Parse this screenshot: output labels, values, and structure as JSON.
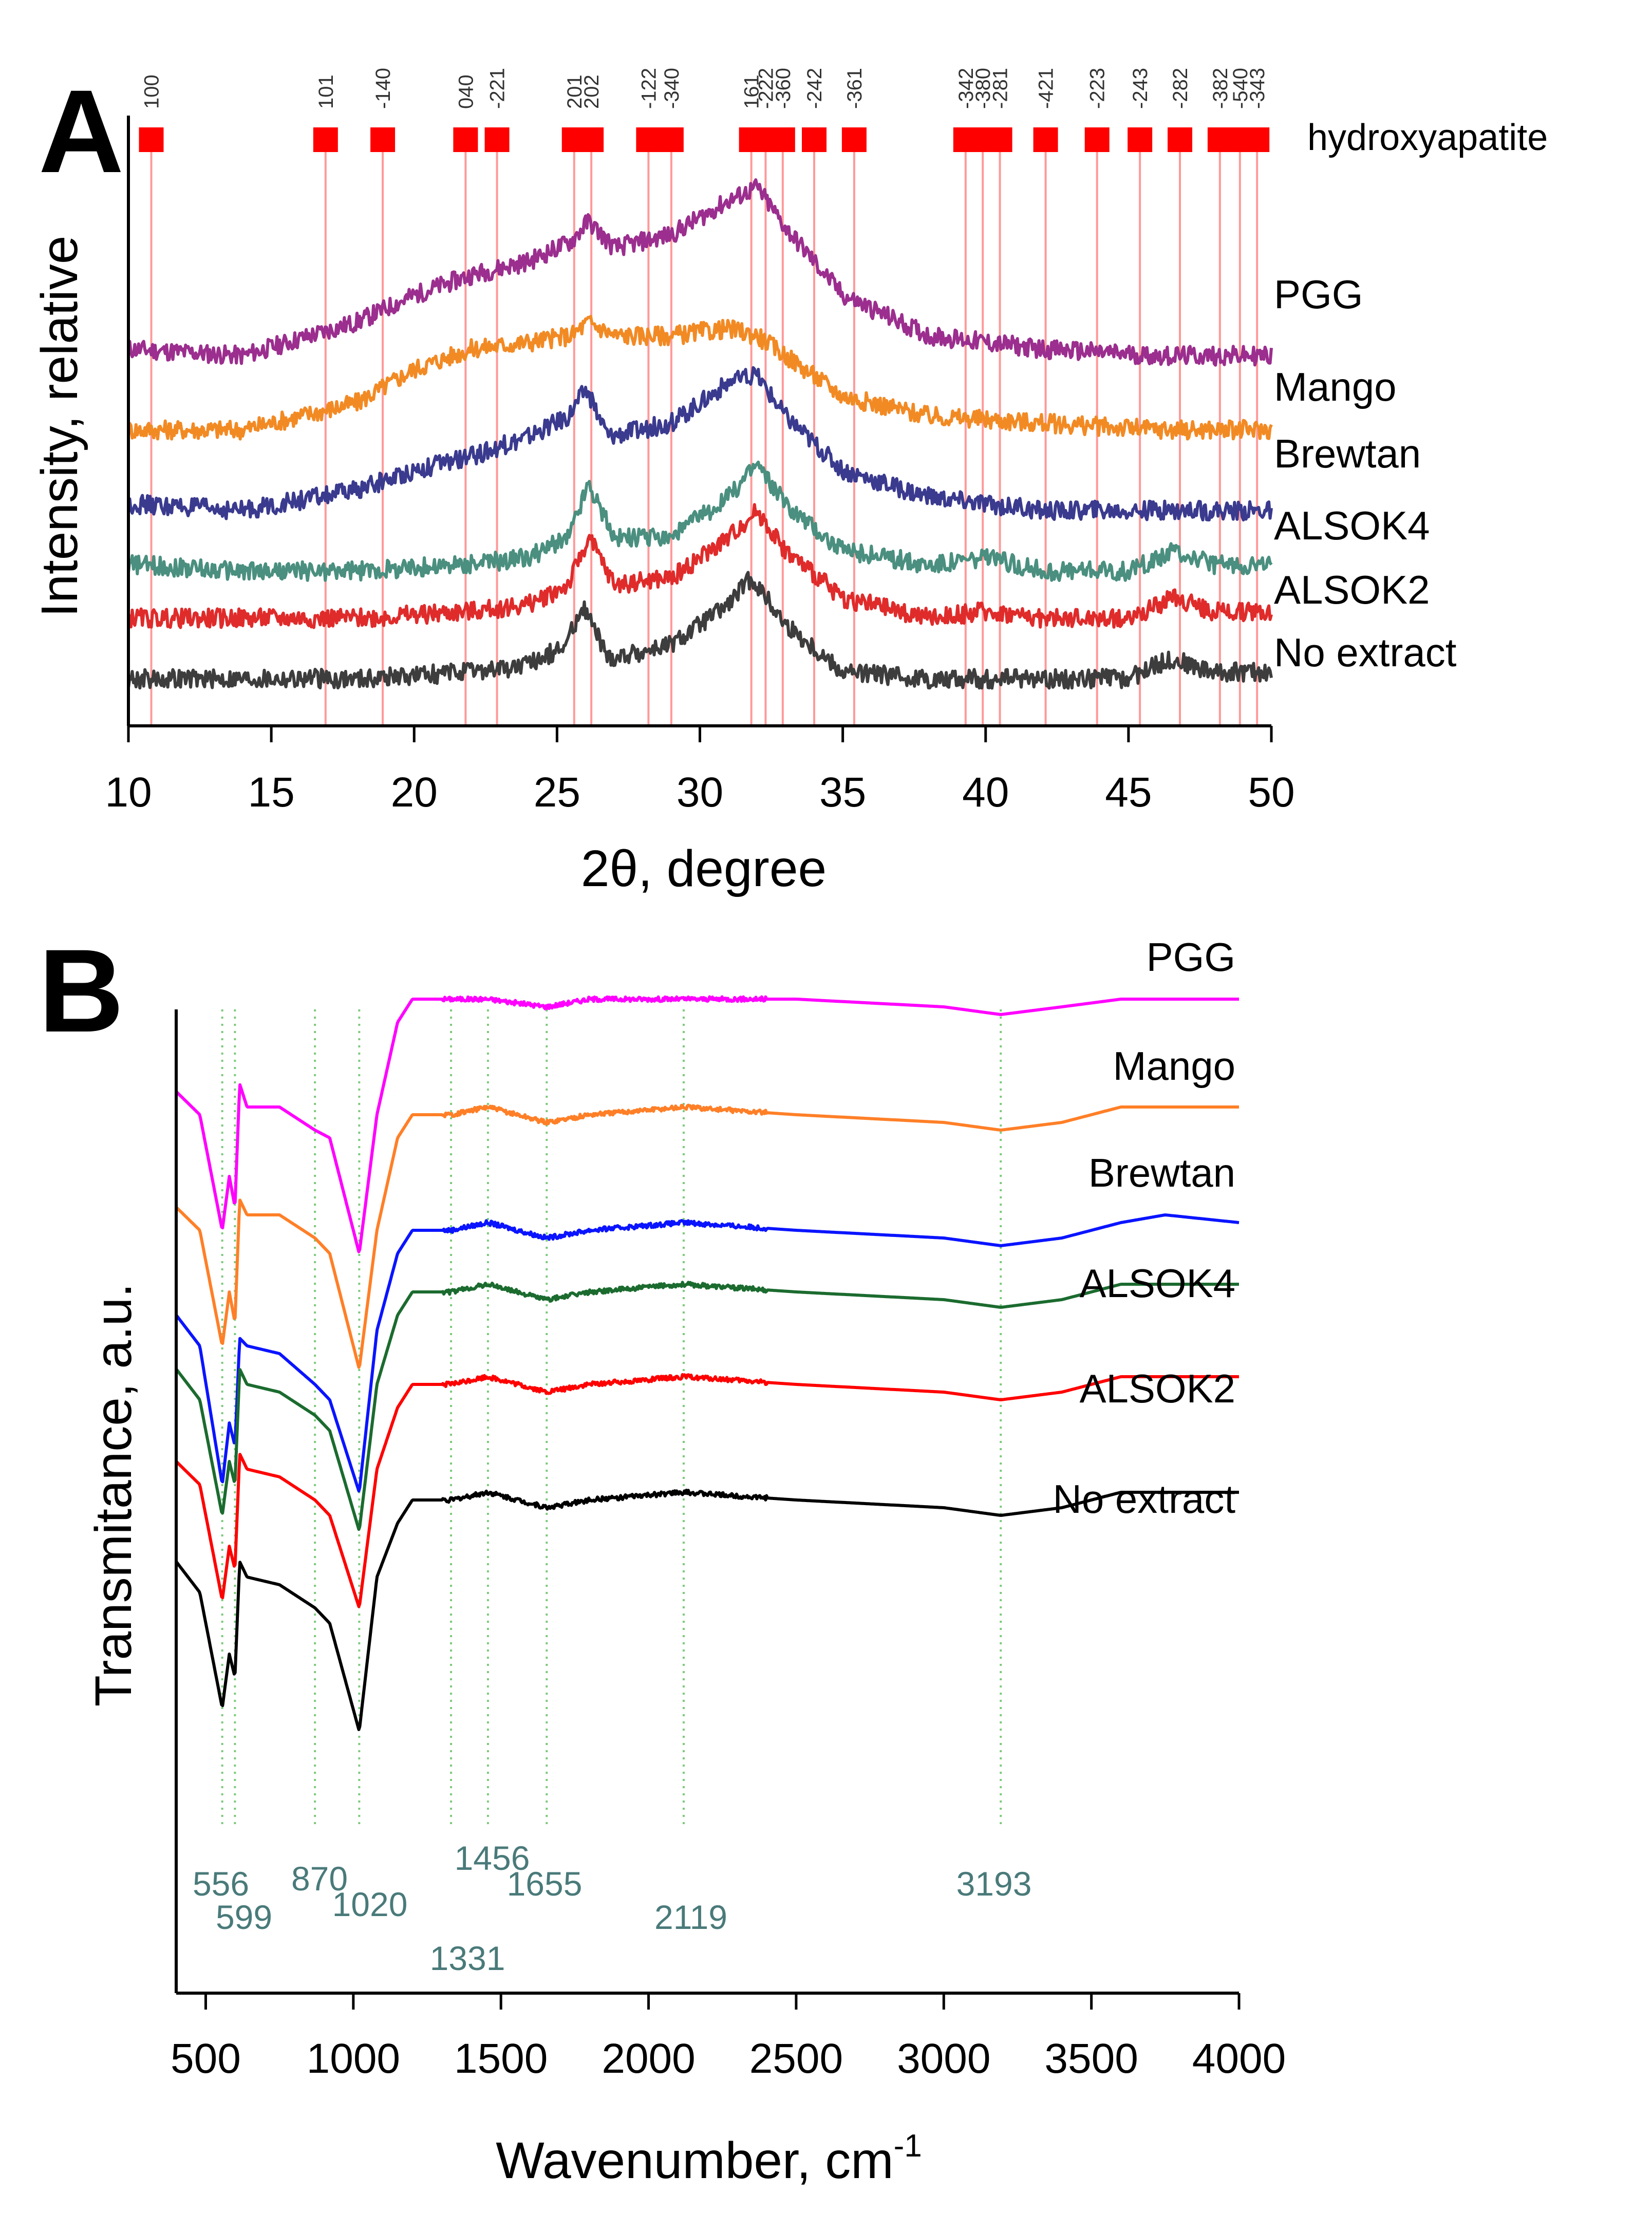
{
  "colors": {
    "stick": "#ff0000",
    "stick_line": "#ff9999",
    "annotation": "#4a7a7a",
    "guide": "#7cc97c",
    "axis": "#000000"
  },
  "chart_data": [
    {
      "panel": "A",
      "type": "line",
      "xlabel": "2θ, degree",
      "ylabel": "Intensity, relative",
      "xlim": [
        10,
        50
      ],
      "xticks": [
        "10",
        "15",
        "20",
        "25",
        "30",
        "35",
        "40",
        "45",
        "50"
      ],
      "reference": {
        "name": "hydroxyapatite",
        "peaks": [
          {
            "hkl": "100",
            "x": 10.8
          },
          {
            "hkl": "101",
            "x": 16.9
          },
          {
            "hkl": "-140",
            "x": 18.9
          },
          {
            "hkl": "040",
            "x": 21.8
          },
          {
            "hkl": "-221",
            "x": 22.9
          },
          {
            "hkl": "201",
            "x": 25.6
          },
          {
            "hkl": "202",
            "x": 26.2
          },
          {
            "hkl": "-122",
            "x": 28.2
          },
          {
            "hkl": "-340",
            "x": 29.0
          },
          {
            "hkl": "161",
            "x": 31.8
          },
          {
            "hkl": "-222",
            "x": 32.3
          },
          {
            "hkl": "-360",
            "x": 32.9
          },
          {
            "hkl": "-242",
            "x": 34.0
          },
          {
            "hkl": "-361",
            "x": 35.4
          },
          {
            "hkl": "-342",
            "x": 39.3
          },
          {
            "hkl": "-380",
            "x": 39.9
          },
          {
            "hkl": "-281",
            "x": 40.5
          },
          {
            "hkl": "-421",
            "x": 42.1
          },
          {
            "hkl": "-223",
            "x": 43.9
          },
          {
            "hkl": "-243",
            "x": 45.4
          },
          {
            "hkl": "-282",
            "x": 46.8
          },
          {
            "hkl": "-382",
            "x": 48.2
          },
          {
            "hkl": "-540",
            "x": 48.9
          },
          {
            "hkl": "-343",
            "x": 49.5
          }
        ]
      },
      "series": [
        {
          "name": "PGG",
          "color": "#9b2e8e",
          "x": [
            10,
            14,
            18,
            20,
            22,
            24,
            25.5,
            26.1,
            27,
            29,
            31,
            32,
            33,
            35,
            38,
            42,
            46,
            50
          ],
          "y": [
            0.56,
            0.55,
            0.6,
            0.64,
            0.67,
            0.69,
            0.72,
            0.75,
            0.71,
            0.73,
            0.78,
            0.8,
            0.74,
            0.64,
            0.58,
            0.56,
            0.55,
            0.55
          ]
        },
        {
          "name": "Mango",
          "color": "#f28a24",
          "x": [
            10,
            14,
            18,
            20,
            22,
            24,
            25.5,
            26.1,
            27,
            29,
            31,
            32,
            33,
            35,
            38,
            42,
            46,
            50
          ],
          "y": [
            0.44,
            0.44,
            0.48,
            0.53,
            0.56,
            0.57,
            0.58,
            0.6,
            0.58,
            0.58,
            0.59,
            0.58,
            0.55,
            0.49,
            0.46,
            0.45,
            0.44,
            0.44
          ]
        },
        {
          "name": "Brewtan",
          "color": "#3a3a8f",
          "x": [
            10,
            14,
            18,
            20,
            22,
            24,
            25.4,
            26.0,
            26.8,
            29,
            31,
            32,
            33,
            35,
            38,
            42,
            46,
            50
          ],
          "y": [
            0.33,
            0.32,
            0.35,
            0.38,
            0.4,
            0.43,
            0.46,
            0.5,
            0.43,
            0.45,
            0.51,
            0.52,
            0.46,
            0.38,
            0.34,
            0.32,
            0.32,
            0.32
          ]
        },
        {
          "name": "ALSOK4",
          "color": "#4a8f7f",
          "x": [
            10,
            14,
            18,
            22,
            24,
            25.4,
            26.1,
            27,
            29,
            31,
            32,
            33,
            35,
            38,
            40,
            42,
            45,
            46.6,
            48,
            50
          ],
          "y": [
            0.24,
            0.23,
            0.23,
            0.24,
            0.25,
            0.28,
            0.36,
            0.28,
            0.28,
            0.34,
            0.39,
            0.33,
            0.26,
            0.24,
            0.25,
            0.23,
            0.23,
            0.26,
            0.24,
            0.24
          ]
        },
        {
          "name": "ALSOK2",
          "color": "#e02b2b",
          "x": [
            10,
            14,
            18,
            22,
            24,
            25.4,
            26.1,
            27,
            29,
            31,
            32,
            33,
            35,
            38,
            40,
            42,
            45,
            46.6,
            48,
            50
          ],
          "y": [
            0.16,
            0.16,
            0.16,
            0.17,
            0.18,
            0.21,
            0.28,
            0.21,
            0.22,
            0.28,
            0.32,
            0.26,
            0.19,
            0.16,
            0.17,
            0.16,
            0.16,
            0.19,
            0.17,
            0.17
          ]
        },
        {
          "name": "No extract",
          "color": "#3d3d3d",
          "x": [
            10,
            14,
            18,
            22,
            24,
            25.3,
            25.9,
            26.8,
            29,
            31,
            31.8,
            33,
            35,
            38,
            40,
            42,
            45,
            46.5,
            48,
            50
          ],
          "y": [
            0.07,
            0.07,
            0.07,
            0.08,
            0.09,
            0.12,
            0.18,
            0.1,
            0.12,
            0.18,
            0.22,
            0.15,
            0.08,
            0.07,
            0.07,
            0.07,
            0.07,
            0.1,
            0.08,
            0.08
          ]
        }
      ]
    },
    {
      "panel": "B",
      "type": "line",
      "xlabel": "Wavenumber, cm",
      "xlabel_sup": "-1",
      "ylabel": "Transmitance, a.u.",
      "xlim": [
        400,
        4000
      ],
      "xticks": [
        "500",
        "1000",
        "1500",
        "2000",
        "2500",
        "3000",
        "3500",
        "4000"
      ],
      "guides": [
        {
          "label": "556",
          "x": 556
        },
        {
          "label": "599",
          "x": 599
        },
        {
          "label": "870",
          "x": 870
        },
        {
          "label": "1020",
          "x": 1020
        },
        {
          "label": "1331",
          "x": 1331
        },
        {
          "label": "1456",
          "x": 1456
        },
        {
          "label": "1655",
          "x": 1655
        },
        {
          "label": "2119",
          "x": 2119
        },
        {
          "label": "3193",
          "x": 3193
        }
      ],
      "series": [
        {
          "name": "PGG",
          "color": "#ff00ff",
          "x": [
            400,
            480,
            556,
            580,
            599,
            615,
            640,
            750,
            870,
            920,
            1020,
            1080,
            1150,
            1200,
            1331,
            1456,
            1655,
            1800,
            2119,
            2500,
            3000,
            3193,
            3400,
            3600,
            3750,
            4000
          ],
          "y": [
            0.88,
            0.85,
            0.7,
            0.77,
            0.73,
            0.89,
            0.86,
            0.86,
            0.83,
            0.82,
            0.67,
            0.85,
            0.97,
            1.0,
            1.0,
            1.0,
            0.99,
            1.0,
            1.0,
            1.0,
            0.99,
            0.98,
            0.99,
            1.0,
            1.0,
            1.0
          ]
        },
        {
          "name": "Mango",
          "color": "#ff7f27",
          "x": [
            400,
            480,
            556,
            580,
            599,
            615,
            640,
            750,
            870,
            920,
            1020,
            1080,
            1150,
            1200,
            1331,
            1456,
            1655,
            1800,
            2119,
            2500,
            3000,
            3193,
            3400,
            3600,
            3750,
            4000
          ],
          "y": [
            0.73,
            0.7,
            0.55,
            0.62,
            0.58,
            0.74,
            0.72,
            0.72,
            0.69,
            0.67,
            0.52,
            0.7,
            0.82,
            0.85,
            0.85,
            0.86,
            0.84,
            0.85,
            0.86,
            0.85,
            0.84,
            0.83,
            0.84,
            0.86,
            0.86,
            0.86
          ]
        },
        {
          "name": "Brewtan",
          "color": "#0a14ff",
          "x": [
            400,
            480,
            556,
            580,
            599,
            615,
            640,
            750,
            870,
            920,
            1020,
            1080,
            1150,
            1200,
            1331,
            1456,
            1655,
            1800,
            2119,
            2500,
            3000,
            3193,
            3400,
            3600,
            3750,
            4000
          ],
          "y": [
            0.59,
            0.55,
            0.37,
            0.45,
            0.42,
            0.56,
            0.55,
            0.54,
            0.5,
            0.48,
            0.36,
            0.57,
            0.67,
            0.7,
            0.7,
            0.71,
            0.69,
            0.7,
            0.71,
            0.7,
            0.69,
            0.68,
            0.69,
            0.71,
            0.72,
            0.71
          ]
        },
        {
          "name": "ALSOK4",
          "color": "#1b6b2f",
          "x": [
            400,
            480,
            556,
            580,
            599,
            615,
            640,
            750,
            870,
            920,
            1020,
            1080,
            1150,
            1200,
            1331,
            1456,
            1655,
            1800,
            2119,
            2500,
            3000,
            3193,
            3400,
            3600,
            3750,
            4000
          ],
          "y": [
            0.52,
            0.48,
            0.33,
            0.4,
            0.37,
            0.52,
            0.5,
            0.49,
            0.46,
            0.44,
            0.31,
            0.5,
            0.59,
            0.62,
            0.62,
            0.63,
            0.61,
            0.62,
            0.63,
            0.62,
            0.61,
            0.6,
            0.61,
            0.63,
            0.63,
            0.63
          ]
        },
        {
          "name": "ALSOK2",
          "color": "#ff0000",
          "x": [
            400,
            480,
            556,
            580,
            599,
            615,
            640,
            750,
            870,
            920,
            1020,
            1080,
            1150,
            1200,
            1331,
            1456,
            1655,
            1800,
            2119,
            2500,
            3000,
            3193,
            3400,
            3600,
            3750,
            4000
          ],
          "y": [
            0.4,
            0.37,
            0.22,
            0.29,
            0.26,
            0.41,
            0.39,
            0.38,
            0.35,
            0.33,
            0.21,
            0.39,
            0.47,
            0.5,
            0.5,
            0.51,
            0.49,
            0.5,
            0.51,
            0.5,
            0.49,
            0.48,
            0.49,
            0.51,
            0.51,
            0.51
          ]
        },
        {
          "name": "No extract",
          "color": "#000000",
          "x": [
            400,
            480,
            556,
            580,
            599,
            615,
            640,
            750,
            870,
            920,
            1020,
            1080,
            1150,
            1200,
            1331,
            1456,
            1655,
            1800,
            2119,
            2500,
            3000,
            3193,
            3400,
            3600,
            3750,
            4000
          ],
          "y": [
            0.27,
            0.23,
            0.08,
            0.15,
            0.12,
            0.27,
            0.25,
            0.24,
            0.21,
            0.19,
            0.05,
            0.25,
            0.32,
            0.35,
            0.35,
            0.36,
            0.34,
            0.35,
            0.36,
            0.35,
            0.34,
            0.33,
            0.34,
            0.36,
            0.36,
            0.36
          ]
        }
      ]
    }
  ],
  "panel_labels": {
    "a": "A",
    "b": "B"
  }
}
